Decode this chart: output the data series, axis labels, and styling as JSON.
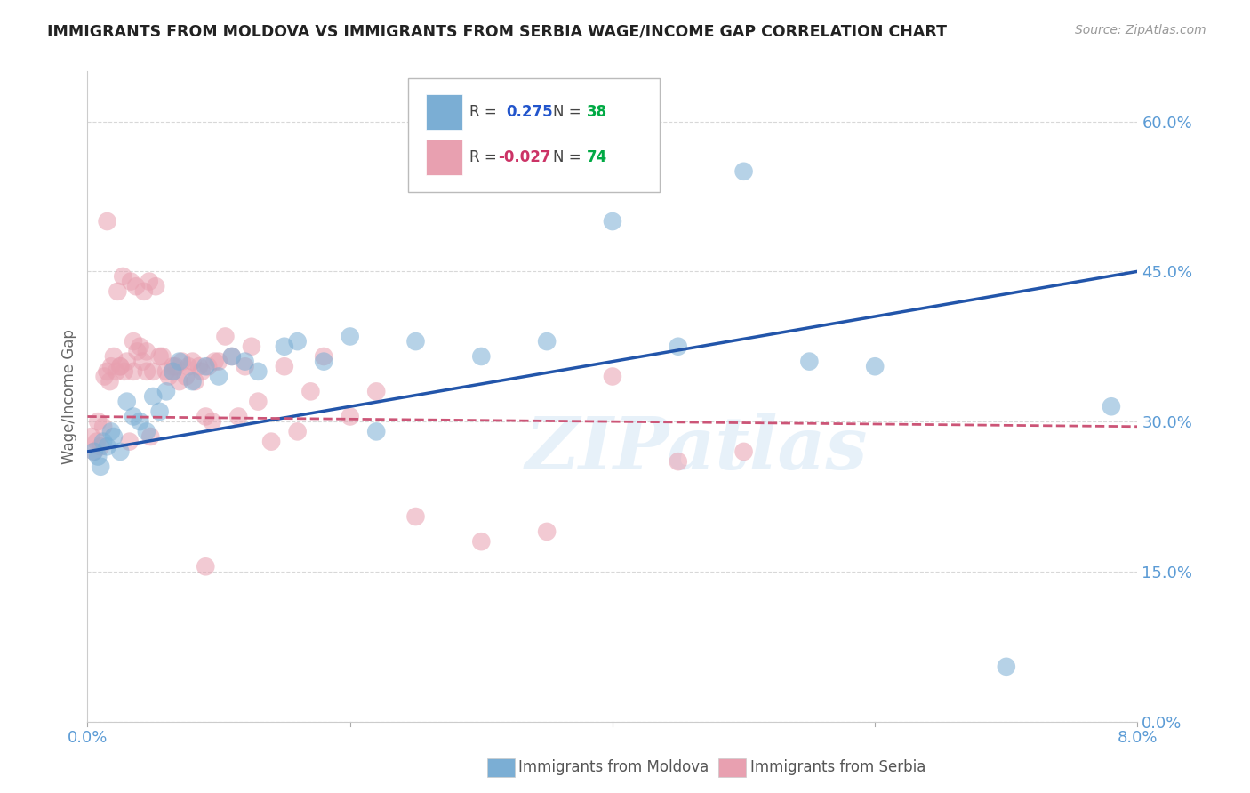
{
  "title": "IMMIGRANTS FROM MOLDOVA VS IMMIGRANTS FROM SERBIA WAGE/INCOME GAP CORRELATION CHART",
  "source": "Source: ZipAtlas.com",
  "ylabel": "Wage/Income Gap",
  "xlim": [
    0.0,
    8.0
  ],
  "ylim": [
    0.0,
    65.0
  ],
  "yticks": [
    0.0,
    15.0,
    30.0,
    45.0,
    60.0
  ],
  "xticks": [
    0.0,
    2.0,
    4.0,
    6.0,
    8.0
  ],
  "xtick_labels": [
    "0.0%",
    "",
    "",
    "",
    "8.0%"
  ],
  "watermark": "ZIPatlas",
  "moldova_color": "#7baed4",
  "serbia_color": "#e8a0b0",
  "moldova_trendline_color": "#2255aa",
  "serbia_trendline_color": "#cc5577",
  "title_color": "#222222",
  "axis_label_color": "#5b9bd5",
  "grid_color": "#d8d8d8",
  "background_color": "#ffffff",
  "moldova_trendline_y0": 27.0,
  "moldova_trendline_y1": 45.0,
  "serbia_trendline_y0": 30.5,
  "serbia_trendline_y1": 29.5,
  "moldova_x": [
    0.05,
    0.08,
    0.1,
    0.12,
    0.15,
    0.18,
    0.2,
    0.25,
    0.3,
    0.35,
    0.4,
    0.45,
    0.5,
    0.55,
    0.6,
    0.65,
    0.7,
    0.8,
    0.9,
    1.0,
    1.1,
    1.2,
    1.3,
    1.5,
    1.6,
    1.8,
    2.0,
    2.5,
    3.0,
    3.5,
    4.0,
    4.5,
    5.0,
    5.5,
    6.0,
    7.0,
    7.8,
    2.2
  ],
  "moldova_y": [
    27.0,
    26.5,
    25.5,
    28.0,
    27.5,
    29.0,
    28.5,
    27.0,
    32.0,
    30.5,
    30.0,
    29.0,
    32.5,
    31.0,
    33.0,
    35.0,
    36.0,
    34.0,
    35.5,
    34.5,
    36.5,
    36.0,
    35.0,
    37.5,
    38.0,
    36.0,
    38.5,
    38.0,
    36.5,
    38.0,
    50.0,
    37.5,
    55.0,
    36.0,
    35.5,
    5.5,
    31.5,
    29.0
  ],
  "serbia_x": [
    0.03,
    0.05,
    0.07,
    0.08,
    0.1,
    0.12,
    0.13,
    0.15,
    0.17,
    0.18,
    0.2,
    0.22,
    0.23,
    0.25,
    0.27,
    0.28,
    0.3,
    0.32,
    0.33,
    0.35,
    0.37,
    0.38,
    0.4,
    0.42,
    0.43,
    0.45,
    0.47,
    0.48,
    0.5,
    0.52,
    0.55,
    0.57,
    0.6,
    0.62,
    0.65,
    0.67,
    0.7,
    0.72,
    0.75,
    0.77,
    0.8,
    0.82,
    0.85,
    0.87,
    0.9,
    0.92,
    0.95,
    0.97,
    1.0,
    1.05,
    1.1,
    1.15,
    1.2,
    1.25,
    1.3,
    1.4,
    1.5,
    1.6,
    1.7,
    1.8,
    2.0,
    2.2,
    2.5,
    3.0,
    3.5,
    4.0,
    4.5,
    5.0,
    0.15,
    0.25,
    0.35,
    0.45,
    0.65,
    0.9
  ],
  "serbia_y": [
    28.5,
    27.0,
    28.0,
    30.0,
    27.5,
    29.5,
    34.5,
    50.0,
    34.0,
    35.5,
    36.5,
    35.0,
    43.0,
    35.5,
    44.5,
    35.0,
    36.0,
    28.0,
    44.0,
    38.0,
    43.5,
    37.0,
    37.5,
    36.0,
    43.0,
    37.0,
    44.0,
    28.5,
    35.0,
    43.5,
    36.5,
    36.5,
    35.0,
    34.5,
    35.0,
    35.5,
    34.0,
    36.0,
    34.5,
    35.5,
    36.0,
    34.0,
    35.5,
    35.0,
    30.5,
    35.5,
    30.0,
    36.0,
    36.0,
    38.5,
    36.5,
    30.5,
    35.5,
    37.5,
    32.0,
    28.0,
    35.5,
    29.0,
    33.0,
    36.5,
    30.5,
    33.0,
    20.5,
    18.0,
    19.0,
    34.5,
    26.0,
    27.0,
    35.0,
    35.5,
    35.0,
    35.0,
    35.5,
    15.5
  ]
}
